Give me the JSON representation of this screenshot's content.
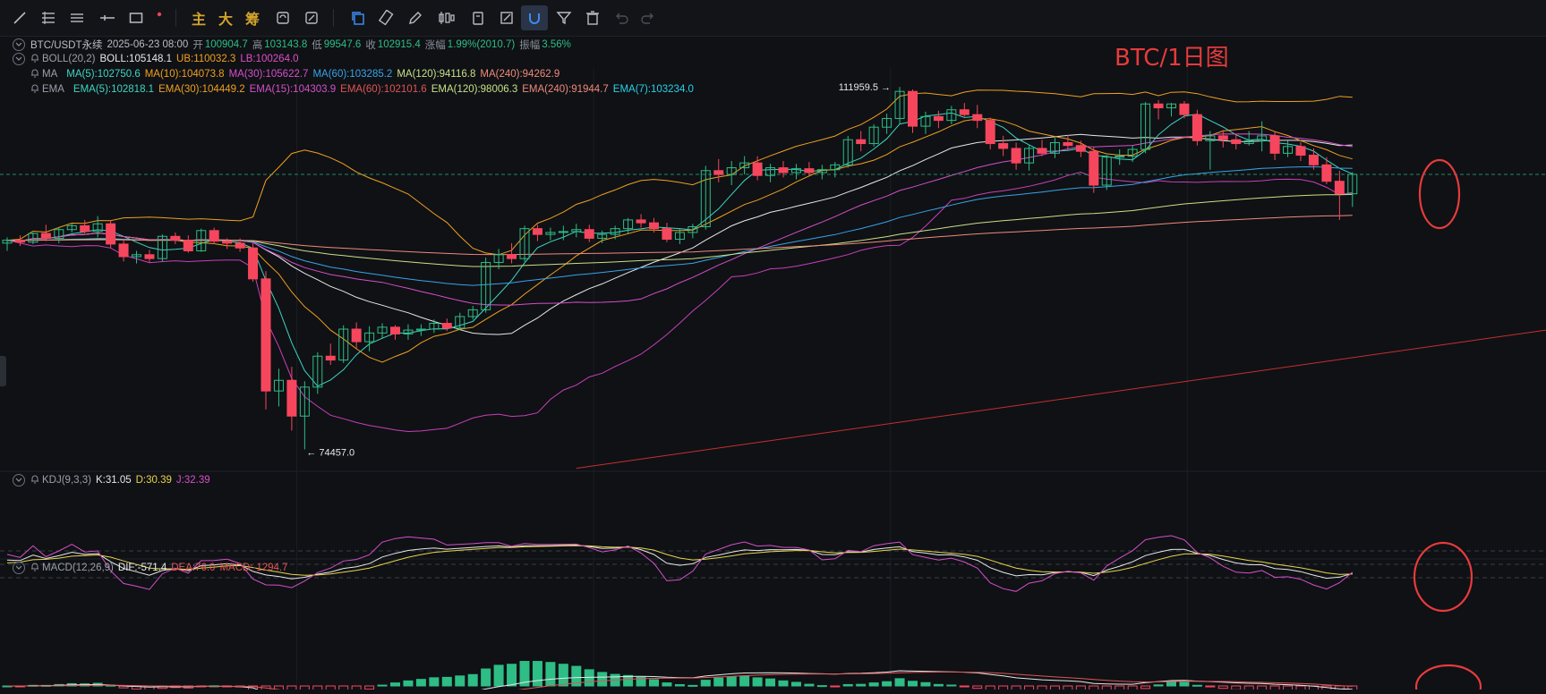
{
  "toolbar": {
    "labels": {
      "main": "主",
      "big": "大",
      "chip": "筹"
    },
    "tools": [
      "trend-line-icon",
      "multi-line-icon",
      "horizontal-lines-icon",
      "horizontal-ray-icon",
      "rectangle-icon",
      "more-dot-icon",
      "text-main",
      "text-big",
      "text-chip",
      "sync-icon",
      "formula-icon",
      "copy-icon",
      "ruler-icon",
      "pencil-icon",
      "candles-icon",
      "save-icon",
      "edit-icon",
      "magnet-icon",
      "filter-icon",
      "delete-icon",
      "undo-icon",
      "redo-icon"
    ]
  },
  "legend": {
    "symbol": {
      "pair": "BTC/USDT永续",
      "datetime": "2025-06-23 08:00",
      "open_label": "开",
      "open": "100904.7",
      "high_label": "高",
      "high": "103143.8",
      "low_label": "低",
      "low": "99547.6",
      "close_label": "收",
      "close": "102915.4",
      "change_label": "涨幅",
      "change": "1.99%(2010.7)",
      "amp_label": "振幅",
      "amp": "3.56%"
    },
    "boll": {
      "name": "BOLL(20,2)",
      "mid": "BOLL:105148.1",
      "ub": "UB:110032.3",
      "lb": "LB:100264.0"
    },
    "ma": {
      "name": "MA",
      "items": [
        "MA(5):102750.6",
        "MA(10):104073.8",
        "MA(30):105622.7",
        "MA(60):103285.2",
        "MA(120):94116.8",
        "MA(240):94262.9"
      ]
    },
    "ema": {
      "name": "EMA",
      "items": [
        "EMA(5):102818.1",
        "EMA(30):104449.2",
        "EMA(15):104303.9",
        "EMA(60):102101.6",
        "EMA(120):98006.3",
        "EMA(240):91944.7",
        "EMA(7):103234.0"
      ]
    },
    "kdj": {
      "name": "KDJ(9,3,3)",
      "k": "K:31.05",
      "d": "D:30.39",
      "j": "J:32.39"
    },
    "macd": {
      "name": "MACD(12,26,9)",
      "dif": "DIF:-571.4",
      "dea": "DEA:76.0",
      "macd": "MACD:-1294.7"
    }
  },
  "annotations": {
    "title": "BTC/1日图",
    "high_label": "111959.5",
    "low_label": "74457.0"
  },
  "colors": {
    "up": "#2ebd85",
    "down": "#f6465d",
    "bg": "#0f1115",
    "ma5": "#3fd5c3",
    "ma10": "#f0a020",
    "ma30": "#d64fc9",
    "ma60": "#3aa3e8",
    "ma120": "#c8e086",
    "ma240": "#f08a7a",
    "boll": "#f0a020",
    "annot": "#e63b3b"
  },
  "chart_data": {
    "type": "candlestick",
    "series_name": "BTC/USDT永续",
    "ylim": [
      72000,
      113000
    ],
    "candles": [
      [
        95800,
        96400,
        95000,
        96100
      ],
      [
        96100,
        96600,
        95500,
        95900
      ],
      [
        95900,
        96900,
        95700,
        96800
      ],
      [
        96800,
        97700,
        96000,
        96300
      ],
      [
        96300,
        97400,
        95800,
        97200
      ],
      [
        97200,
        97800,
        96900,
        97600
      ],
      [
        97600,
        98200,
        96800,
        97000
      ],
      [
        97000,
        98600,
        96400,
        97800
      ],
      [
        97800,
        98100,
        95300,
        95700
      ],
      [
        95700,
        96200,
        93900,
        94400
      ],
      [
        94400,
        95000,
        93700,
        94600
      ],
      [
        94600,
        95100,
        93800,
        94200
      ],
      [
        94200,
        96700,
        93900,
        96500
      ],
      [
        96500,
        96900,
        95700,
        96100
      ],
      [
        96100,
        96600,
        94800,
        95000
      ],
      [
        95000,
        97300,
        94900,
        97100
      ],
      [
        97100,
        97400,
        95700,
        96000
      ],
      [
        96000,
        96300,
        95200,
        95800
      ],
      [
        95800,
        96300,
        94900,
        95300
      ],
      [
        95300,
        95800,
        91800,
        92100
      ],
      [
        92100,
        92900,
        78600,
        80500
      ],
      [
        80500,
        82800,
        78900,
        81600
      ],
      [
        81600,
        83000,
        76400,
        77900
      ],
      [
        77900,
        81500,
        74457,
        80900
      ],
      [
        80900,
        84500,
        80200,
        84100
      ],
      [
        84100,
        85400,
        83200,
        83700
      ],
      [
        83700,
        87300,
        83400,
        86900
      ],
      [
        86900,
        87600,
        84900,
        85600
      ],
      [
        85600,
        87200,
        84600,
        86500
      ],
      [
        86500,
        87500,
        85900,
        87100
      ],
      [
        87100,
        87300,
        85800,
        86400
      ],
      [
        86400,
        87400,
        85800,
        86800
      ],
      [
        86800,
        87400,
        86200,
        86900
      ],
      [
        86900,
        87900,
        86500,
        87500
      ],
      [
        87500,
        88000,
        86700,
        87000
      ],
      [
        87000,
        88600,
        86800,
        88200
      ],
      [
        88200,
        89300,
        87900,
        88900
      ],
      [
        88900,
        94300,
        88600,
        93800
      ],
      [
        93800,
        95200,
        93100,
        94600
      ],
      [
        94600,
        95800,
        93700,
        94200
      ],
      [
        94200,
        97600,
        93900,
        97300
      ],
      [
        97300,
        97700,
        96000,
        96700
      ],
      [
        96700,
        97400,
        96100,
        96900
      ],
      [
        96900,
        97600,
        96100,
        97000
      ],
      [
        97000,
        97800,
        96400,
        97200
      ],
      [
        97200,
        97700,
        95900,
        96300
      ],
      [
        96300,
        97100,
        95800,
        96700
      ],
      [
        96700,
        97600,
        96200,
        97300
      ],
      [
        97300,
        98400,
        96800,
        98200
      ],
      [
        98200,
        98800,
        97400,
        97900
      ],
      [
        97900,
        98400,
        96900,
        97300
      ],
      [
        97300,
        97900,
        95900,
        96200
      ],
      [
        96200,
        97300,
        95700,
        96900
      ],
      [
        96900,
        97800,
        96300,
        97500
      ],
      [
        97500,
        103800,
        97200,
        103300
      ],
      [
        103300,
        104500,
        102100,
        102900
      ],
      [
        102900,
        104300,
        101800,
        103600
      ],
      [
        103600,
        104800,
        102900,
        104100
      ],
      [
        104100,
        104800,
        102300,
        102800
      ],
      [
        102800,
        104000,
        102100,
        103600
      ],
      [
        103600,
        104300,
        102600,
        103100
      ],
      [
        103100,
        104000,
        102400,
        103500
      ],
      [
        103500,
        104200,
        102800,
        103100
      ],
      [
        103100,
        103900,
        102400,
        103400
      ],
      [
        103400,
        104200,
        102600,
        103900
      ],
      [
        103900,
        106900,
        103600,
        106500
      ],
      [
        106500,
        107400,
        105300,
        106100
      ],
      [
        106100,
        108100,
        105800,
        107800
      ],
      [
        107800,
        109200,
        107100,
        108700
      ],
      [
        108700,
        111959.5,
        108100,
        111500
      ],
      [
        111500,
        111700,
        107200,
        107900
      ],
      [
        107900,
        109400,
        107100,
        108900
      ],
      [
        108900,
        109500,
        107700,
        108500
      ],
      [
        108500,
        110000,
        108100,
        109600
      ],
      [
        109600,
        110300,
        108900,
        109100
      ],
      [
        109100,
        110100,
        107700,
        108500
      ],
      [
        108500,
        108800,
        105500,
        106100
      ],
      [
        106100,
        106900,
        104800,
        105600
      ],
      [
        105600,
        106200,
        103400,
        104100
      ],
      [
        104100,
        105900,
        103300,
        105600
      ],
      [
        105600,
        106500,
        104800,
        105100
      ],
      [
        105100,
        106700,
        104600,
        106200
      ],
      [
        106200,
        107000,
        105400,
        105900
      ],
      [
        105900,
        106400,
        104700,
        105300
      ],
      [
        105300,
        105700,
        101000,
        101800
      ],
      [
        101800,
        104900,
        101300,
        104700
      ],
      [
        104700,
        105500,
        103900,
        104800
      ],
      [
        104800,
        105900,
        104200,
        105500
      ],
      [
        105500,
        110400,
        105100,
        110200
      ],
      [
        110200,
        110600,
        108600,
        109800
      ],
      [
        109800,
        110300,
        108900,
        110200
      ],
      [
        110200,
        110500,
        108700,
        109100
      ],
      [
        109100,
        109600,
        105900,
        106400
      ],
      [
        106400,
        107400,
        103400,
        106900
      ],
      [
        106900,
        107500,
        105700,
        106500
      ],
      [
        106500,
        107100,
        105500,
        106100
      ],
      [
        106100,
        107400,
        105900,
        106400
      ],
      [
        106400,
        108400,
        105300,
        106900
      ],
      [
        106900,
        107300,
        104400,
        105100
      ],
      [
        105100,
        106400,
        104700,
        105800
      ],
      [
        105800,
        106300,
        104300,
        104900
      ],
      [
        104900,
        105600,
        103400,
        103900
      ],
      [
        103900,
        104700,
        101900,
        102200
      ],
      [
        102200,
        103300,
        98200,
        100904.7
      ],
      [
        100904.7,
        103143.8,
        99547.6,
        102915.4
      ]
    ]
  }
}
